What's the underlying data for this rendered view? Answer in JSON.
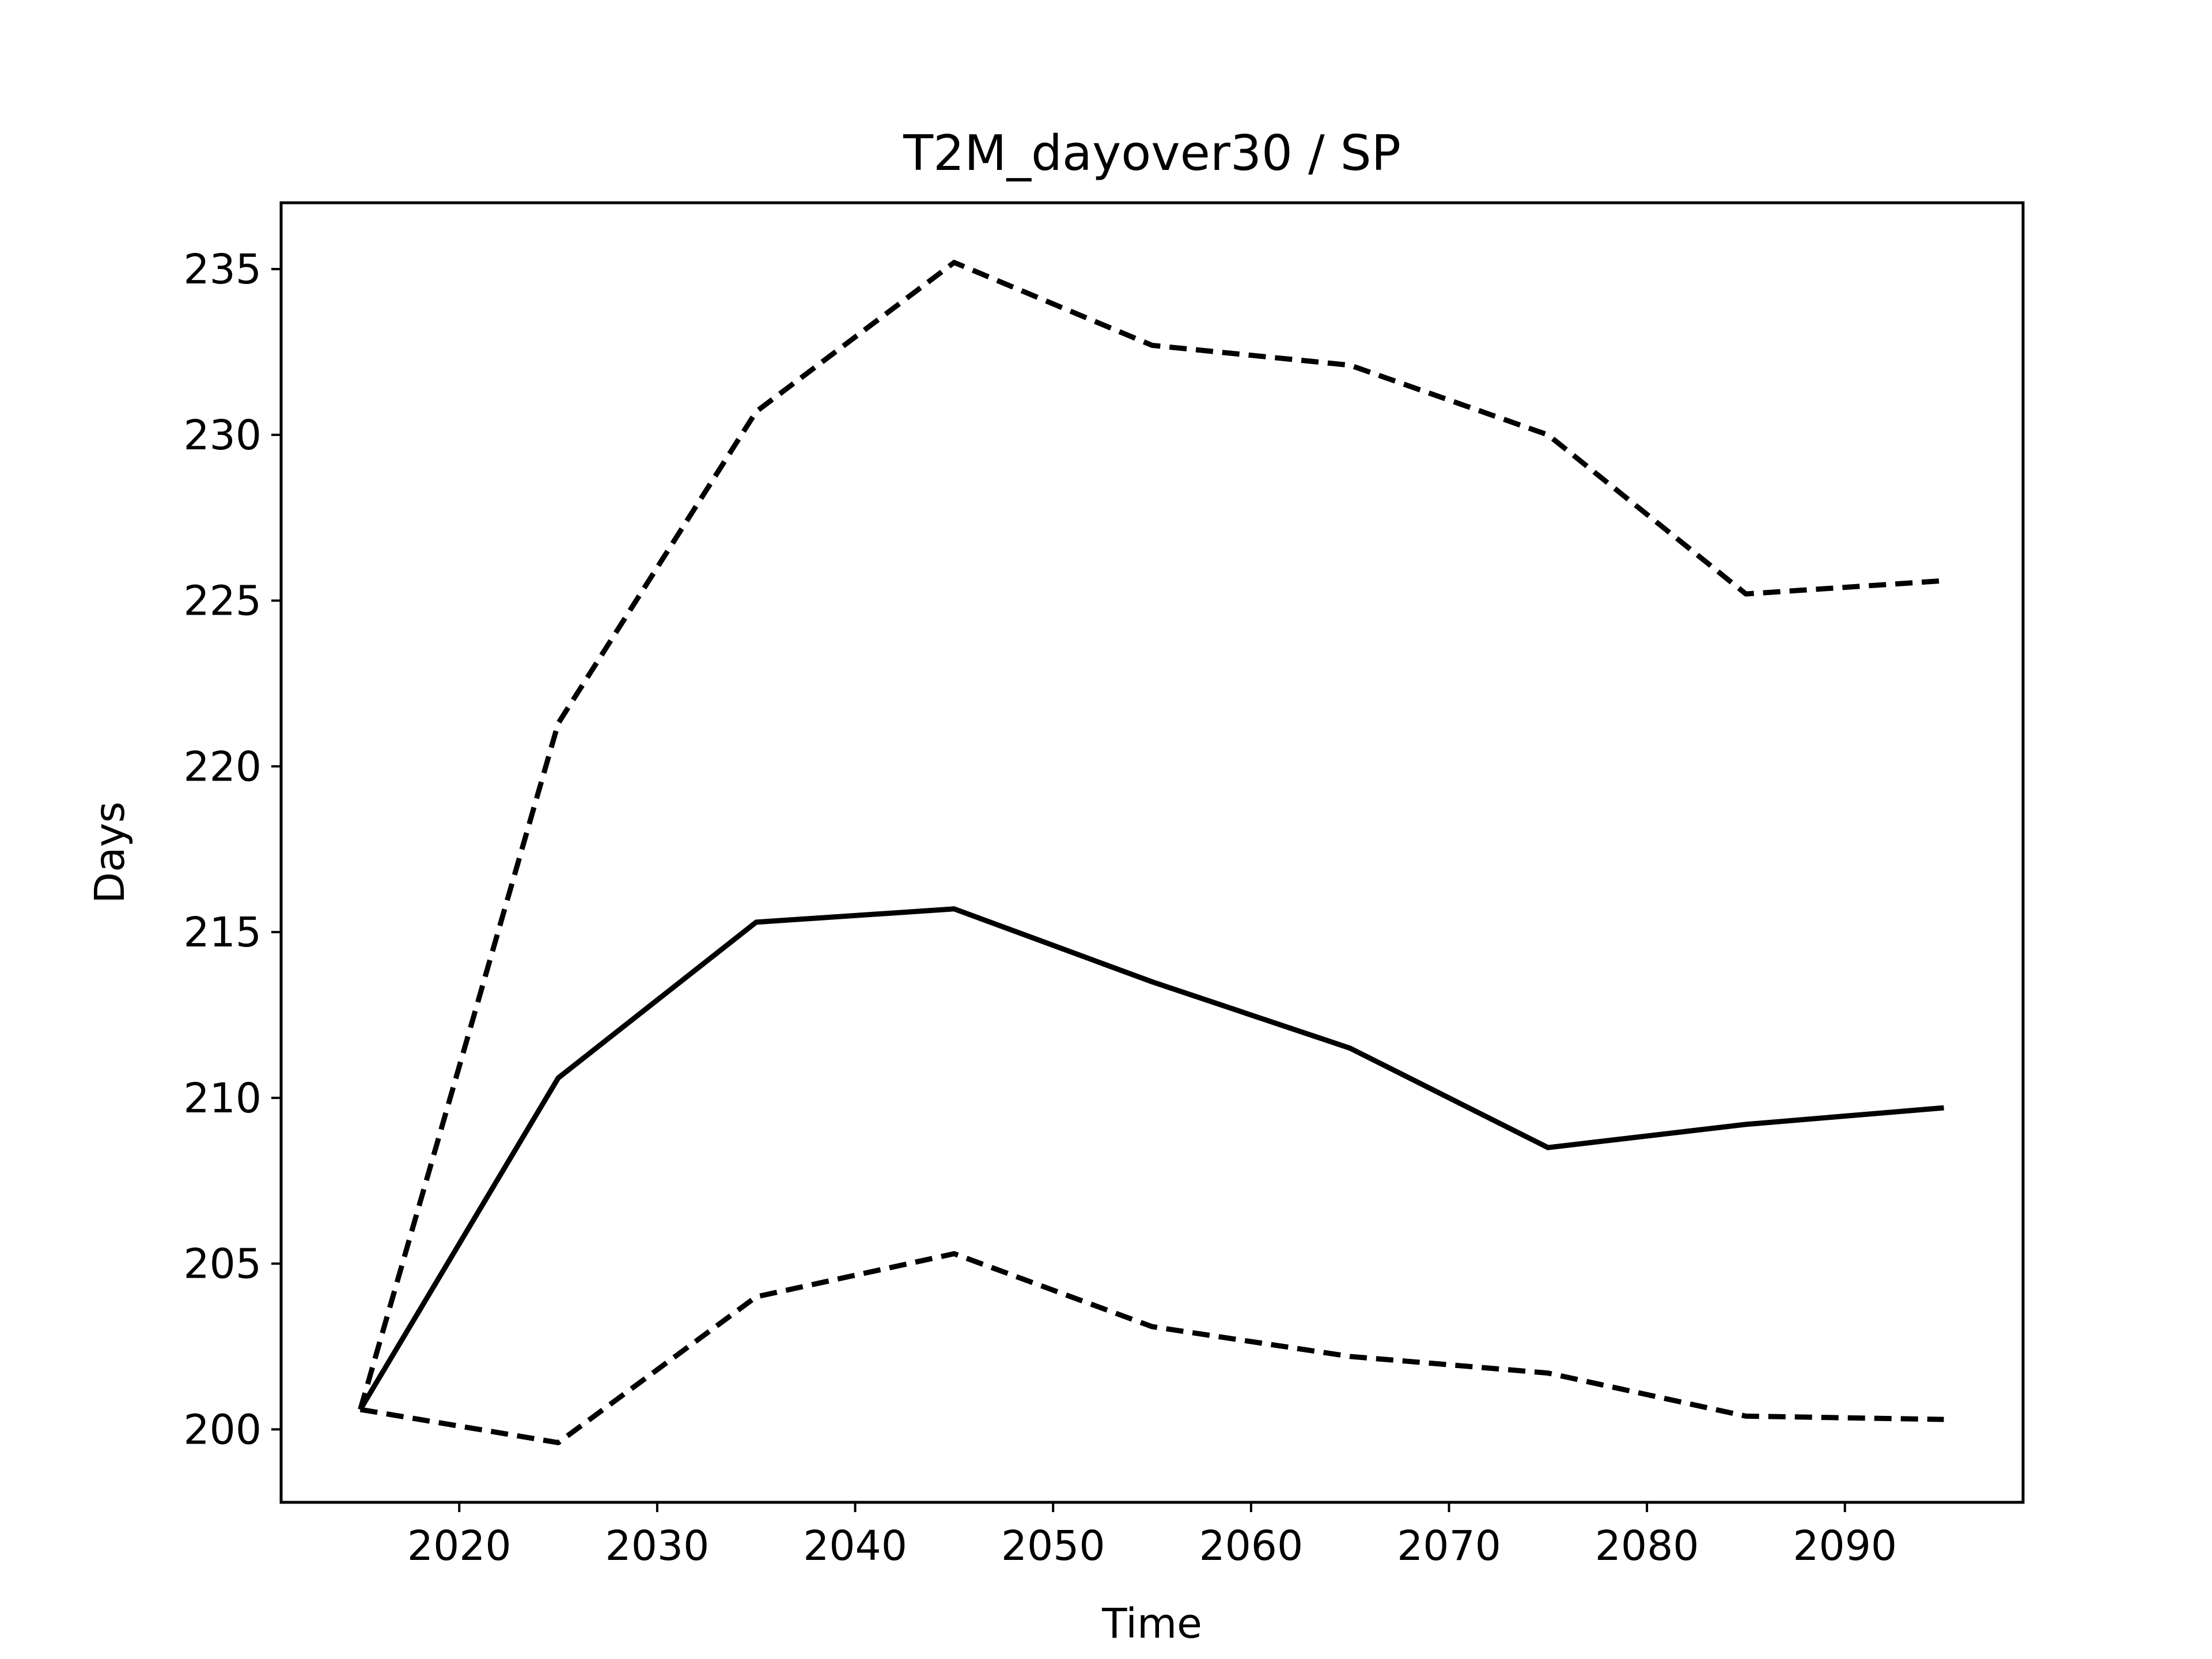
{
  "chart_data": {
    "type": "line",
    "title": "T2M_dayover30 / SP",
    "xlabel": "Time",
    "ylabel": "Days",
    "xlim": [
      2011,
      2099
    ],
    "ylim": [
      197.8,
      237
    ],
    "xticks": [
      2020,
      2030,
      2040,
      2050,
      2060,
      2070,
      2080,
      2090
    ],
    "yticks": [
      200,
      205,
      210,
      215,
      220,
      225,
      230,
      235
    ],
    "grid": false,
    "legend": "none",
    "x": [
      2015,
      2025,
      2035,
      2045,
      2055,
      2065,
      2075,
      2085,
      2095
    ],
    "series": [
      {
        "style": "dashed",
        "color": "#000000",
        "values": [
          200.6,
          221.3,
          230.7,
          235.2,
          232.7,
          232.1,
          230.0,
          225.2,
          225.6
        ]
      },
      {
        "style": "solid",
        "color": "#000000",
        "values": [
          200.6,
          210.6,
          215.3,
          215.7,
          213.5,
          211.5,
          208.5,
          209.2,
          209.7
        ]
      },
      {
        "style": "dashed",
        "color": "#000000",
        "values": [
          200.6,
          199.6,
          204.0,
          205.3,
          203.1,
          202.2,
          201.7,
          200.4,
          200.3
        ]
      }
    ]
  }
}
